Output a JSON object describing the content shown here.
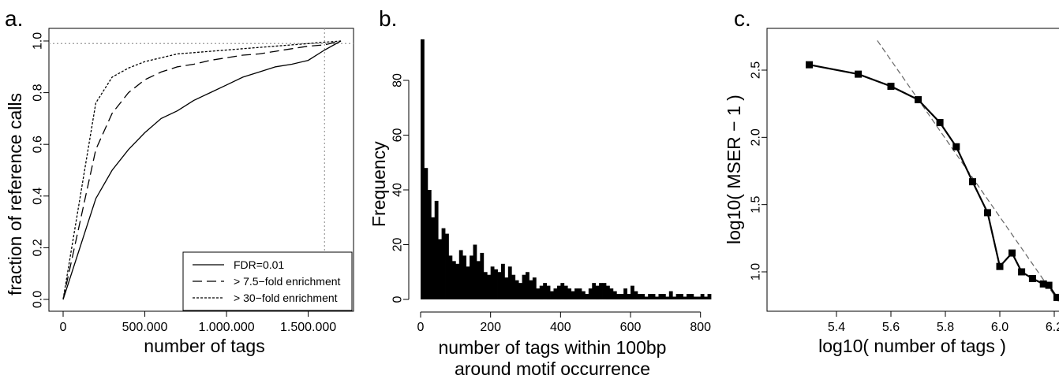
{
  "chart_data": [
    {
      "type": "line",
      "panel_label": "a.",
      "xlabel": "number of tags",
      "ylabel": "fraction of reference calls",
      "xlim": [
        0,
        1700000
      ],
      "ylim": [
        0,
        1
      ],
      "x_ticks": [
        0,
        500000,
        1000000,
        1500000
      ],
      "x_tick_labels": [
        "0",
        "500,000",
        "1,000,000",
        "1,500,000"
      ],
      "y_ticks": [
        0,
        0.2,
        0.4,
        0.6,
        0.8,
        1.0
      ],
      "y_tick_labels": [
        "0.0",
        "0.2",
        "0.4",
        "0.6",
        "0.8",
        "1.0"
      ],
      "reference_lines": {
        "horizontal_y": 0.99,
        "vertical_x": 1600000,
        "style": "dotted"
      },
      "legend": {
        "placement": "bottom-right"
      },
      "series": [
        {
          "name": "FDR=0.01",
          "dash": "solid",
          "x": [
            0,
            200000,
            300000,
            400000,
            500000,
            600000,
            700000,
            800000,
            900000,
            1000000,
            1100000,
            1200000,
            1300000,
            1400000,
            1500000,
            1600000,
            1700000
          ],
          "y": [
            0,
            0.39,
            0.5,
            0.58,
            0.645,
            0.7,
            0.73,
            0.77,
            0.8,
            0.83,
            0.86,
            0.88,
            0.9,
            0.91,
            0.925,
            0.965,
            1.0
          ]
        },
        {
          "name": "> 7.5−fold enrichment",
          "dash": "dashed",
          "x": [
            0,
            200000,
            300000,
            400000,
            500000,
            600000,
            700000,
            800000,
            900000,
            1000000,
            1100000,
            1200000,
            1300000,
            1400000,
            1500000,
            1600000,
            1700000
          ],
          "y": [
            0,
            0.58,
            0.72,
            0.8,
            0.85,
            0.88,
            0.9,
            0.91,
            0.925,
            0.935,
            0.945,
            0.95,
            0.96,
            0.97,
            0.98,
            0.985,
            1.0
          ]
        },
        {
          "name": "> 30−fold enrichment",
          "dash": "dotted",
          "x": [
            0,
            200000,
            300000,
            400000,
            500000,
            600000,
            700000,
            800000,
            900000,
            1000000,
            1100000,
            1200000,
            1300000,
            1400000,
            1500000,
            1600000,
            1700000
          ],
          "y": [
            0,
            0.76,
            0.86,
            0.895,
            0.92,
            0.935,
            0.95,
            0.955,
            0.96,
            0.965,
            0.97,
            0.975,
            0.98,
            0.985,
            0.99,
            0.995,
            1.0
          ]
        }
      ]
    },
    {
      "type": "bar",
      "panel_label": "b.",
      "subtype": "histogram",
      "xlabel": "number of tags within 100bp",
      "xlabel2": "around motif occurrence",
      "ylabel": "Frequency",
      "xlim": [
        0,
        830
      ],
      "ylim": [
        0,
        100
      ],
      "x_ticks": [
        0,
        200,
        400,
        600,
        800
      ],
      "y_ticks": [
        0,
        20,
        40,
        60,
        80
      ],
      "bin_width": 10,
      "bin_starts": [
        0,
        10,
        20,
        30,
        40,
        50,
        60,
        70,
        80,
        90,
        100,
        110,
        120,
        130,
        140,
        150,
        160,
        170,
        180,
        190,
        200,
        210,
        220,
        230,
        240,
        250,
        260,
        270,
        280,
        290,
        300,
        310,
        320,
        330,
        340,
        350,
        360,
        370,
        380,
        390,
        400,
        410,
        420,
        430,
        440,
        450,
        460,
        470,
        480,
        490,
        500,
        510,
        520,
        530,
        540,
        550,
        560,
        570,
        580,
        590,
        600,
        610,
        620,
        630,
        640,
        650,
        660,
        670,
        680,
        690,
        700,
        710,
        720,
        730,
        740,
        750,
        760,
        770,
        780,
        790,
        800,
        810,
        820
      ],
      "values": [
        95,
        48,
        40,
        30,
        36,
        22,
        26,
        24,
        16,
        14,
        13,
        18,
        16,
        12,
        16,
        20,
        14,
        17,
        10,
        9,
        12,
        11,
        10,
        13,
        8,
        12,
        9,
        7,
        6,
        9,
        10,
        7,
        8,
        4,
        5,
        6,
        5,
        3,
        4,
        5,
        6,
        5,
        4,
        3,
        4,
        4,
        3,
        2,
        4,
        6,
        5,
        6,
        6,
        5,
        4,
        3,
        2,
        2,
        4,
        2,
        5,
        3,
        2,
        2,
        1,
        2,
        2,
        1,
        2,
        2,
        1,
        3,
        1,
        2,
        2,
        1,
        2,
        2,
        1,
        1,
        2,
        1,
        2
      ]
    },
    {
      "type": "line",
      "panel_label": "c.",
      "xlabel": "log10( number of tags )",
      "ylabel": "log10( MSER − 1 )",
      "xlim": [
        5.25,
        6.25
      ],
      "ylim": [
        0.78,
        2.62
      ],
      "x_ticks": [
        5.4,
        5.6,
        5.8,
        6.0,
        6.2
      ],
      "x_tick_labels": [
        "5.4",
        "5.6",
        "5.8",
        "6.0",
        "6.2"
      ],
      "y_ticks": [
        1.0,
        1.5,
        2.0,
        2.5
      ],
      "y_tick_labels": [
        "1.0",
        "1.5",
        "2.0",
        "2.5"
      ],
      "series": [
        {
          "marker": "square",
          "dash": "solid",
          "x": [
            5.3,
            5.48,
            5.6,
            5.7,
            5.78,
            5.84,
            5.9,
            5.955,
            6.0,
            6.045,
            6.08,
            6.12,
            6.16,
            6.18,
            6.21
          ],
          "y": [
            2.54,
            2.47,
            2.38,
            2.28,
            2.11,
            1.93,
            1.67,
            1.44,
            1.04,
            1.14,
            1.0,
            0.95,
            0.91,
            0.9,
            0.81
          ]
        }
      ],
      "fit_line": {
        "dash": "dashed",
        "x": [
          5.55,
          6.25
        ],
        "y": [
          2.72,
          0.68
        ]
      }
    }
  ]
}
